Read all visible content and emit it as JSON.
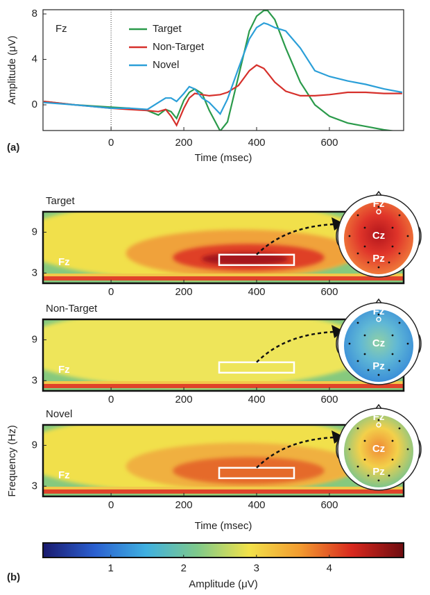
{
  "chart_data": [
    {
      "type": "line",
      "panel_label": "(a)",
      "annotation": "Fz",
      "x_label": "Time (msec)",
      "y_label": "Amplitude (μV)",
      "x": [
        -185,
        -100,
        0,
        50,
        100,
        130,
        150,
        165,
        180,
        200,
        215,
        230,
        250,
        270,
        300,
        320,
        350,
        380,
        400,
        420,
        430,
        450,
        480,
        520,
        560,
        600,
        650,
        700,
        750,
        800
      ],
      "series": [
        {
          "name": "Target",
          "color": "#2a9a4a",
          "values": [
            0.3,
            0,
            -0.2,
            -0.3,
            -0.5,
            -0.9,
            -0.4,
            -0.6,
            -1.2,
            0.4,
            1.1,
            1.4,
            1.0,
            -0.5,
            -2.3,
            -1.5,
            2.5,
            6.5,
            7.8,
            8.3,
            8.3,
            7.5,
            5,
            2,
            0,
            -1,
            -1.6,
            -1.9,
            -2.2,
            -2.4
          ]
        },
        {
          "name": "Non-Target",
          "color": "#d6302b",
          "values": [
            0.3,
            0,
            -0.3,
            -0.4,
            -0.5,
            -0.6,
            -0.4,
            -1.0,
            -1.8,
            -0.3,
            0.6,
            1.0,
            0.9,
            0.8,
            0.9,
            1.1,
            1.7,
            3.0,
            3.5,
            3.2,
            2.8,
            2.0,
            1.2,
            0.8,
            0.8,
            0.9,
            1.1,
            1.1,
            1.0,
            1.0
          ]
        },
        {
          "name": "Novel",
          "color": "#2b9fd8",
          "values": [
            0.2,
            0,
            -0.3,
            -0.3,
            -0.4,
            0.2,
            0.6,
            0.6,
            0.3,
            1.0,
            1.6,
            1.4,
            0.6,
            0.2,
            -0.8,
            0.5,
            3.2,
            5.8,
            6.8,
            7.2,
            7.1,
            6.8,
            6.5,
            5.0,
            3.0,
            2.5,
            2.1,
            1.8,
            1.4,
            1.1
          ]
        }
      ],
      "xlim": [
        -187,
        804
      ],
      "xticks": [
        0,
        200,
        400,
        600
      ],
      "ylim": [
        -2.26,
        8.37
      ],
      "yticks": [
        0,
        4,
        8
      ],
      "zero_line": true
    },
    {
      "type": "heatmap",
      "title": "Target",
      "annotation": "Fz",
      "topo_labels": [
        "Fz",
        "Cz",
        "Pz"
      ],
      "colors": [
        "#86c97e",
        "#f1e04c",
        "#f0a23a",
        "#df3f27",
        "#a5151b"
      ],
      "topo_colors": [
        "#b3161c",
        "#e0352a",
        "#ef7a3a"
      ],
      "xlim": [
        -187,
        804
      ],
      "xticks": [
        0,
        200,
        400,
        600
      ],
      "ylim": [
        1.5,
        12
      ],
      "yticks": [
        3,
        9
      ]
    },
    {
      "type": "heatmap",
      "title": "Non-Target",
      "annotation": "Fz",
      "topo_labels": [
        "Fz",
        "Cz",
        "Pz"
      ],
      "colors": [
        "#86c97e",
        "#eee55a"
      ],
      "topo_colors": [
        "#8fd0a6",
        "#5fb7d6",
        "#3b8fd8"
      ],
      "xlim": [
        -187,
        804
      ],
      "xticks": [
        0,
        200,
        400,
        600
      ],
      "ylim": [
        1.5,
        12
      ],
      "yticks": [
        3,
        9
      ]
    },
    {
      "type": "heatmap",
      "title": "Novel",
      "annotation": "Fz",
      "topo_labels": [
        "Fz",
        "Cz",
        "Pz"
      ],
      "colors": [
        "#86c97e",
        "#f1e04c",
        "#f0b040",
        "#e56a2c"
      ],
      "topo_colors": [
        "#ef8a35",
        "#f3d04a",
        "#7fc58a"
      ],
      "xlim": [
        -187,
        804
      ],
      "xticks": [
        0,
        200,
        400,
        600
      ],
      "ylim": [
        1.5,
        12
      ],
      "yticks": [
        3,
        9
      ],
      "x_label": "Time (msec)",
      "y_label": "Frequency (Hz)"
    },
    {
      "type": "colorbar",
      "panel_label": "(b)",
      "label": "Amplitude (μV)",
      "colors": [
        "#1a1a6e",
        "#2a5fd0",
        "#3fb0e0",
        "#7fc98a",
        "#f2e24a",
        "#f29a30",
        "#d8281e",
        "#6e0c10"
      ],
      "lim": [
        0.07,
        5.02
      ],
      "ticks": [
        1,
        2,
        3,
        4
      ]
    }
  ]
}
